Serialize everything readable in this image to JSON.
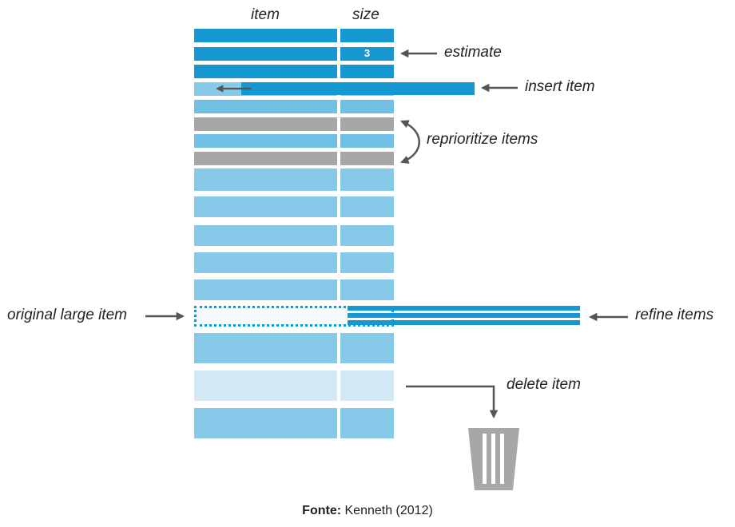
{
  "columns": {
    "item": "item",
    "size": "size"
  },
  "colors": {
    "dark": "#1597d2",
    "mid": "#6fc0e4",
    "light": "#87c9e8",
    "faint": "#d2e9f5",
    "gray": "#a7a7a7",
    "arrow": "#555555",
    "text": "#222222"
  },
  "rows": [
    {
      "shade": "dark"
    },
    {
      "shade": "dark",
      "size_value": "3"
    },
    {
      "shade": "dark"
    },
    {
      "shade": "insert"
    },
    {
      "shade": "mid"
    },
    {
      "shade": "gray"
    },
    {
      "shade": "mid"
    },
    {
      "shade": "gray"
    },
    {
      "shade": "light"
    },
    {
      "shade": "light"
    },
    {
      "shade": "light"
    },
    {
      "shade": "light"
    },
    {
      "shade": "light"
    },
    {
      "shade": "dotted"
    },
    {
      "shade": "light"
    },
    {
      "shade": "faint"
    },
    {
      "shade": "light"
    }
  ],
  "annotations": {
    "estimate": "estimate",
    "insert_item": "insert item",
    "reprioritize_items": "reprioritize items",
    "original_large_item": "original large item",
    "refine_items": "refine items",
    "delete_item": "delete item"
  },
  "icons": {
    "trash": "trash-bin-icon"
  },
  "source": {
    "label": "Fonte:",
    "text": "Kenneth (2012)"
  }
}
